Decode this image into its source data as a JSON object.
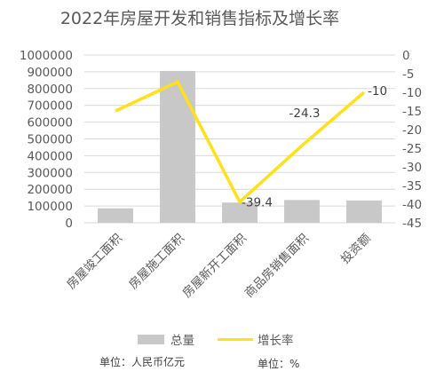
{
  "chart_data": {
    "type": "bar+line",
    "title": "2022年房屋开发和销售指标及增长率",
    "categories": [
      "房屋竣工面积",
      "房屋施工面积",
      "房屋新开工面积",
      "商品房销售面积",
      "投资额"
    ],
    "series": [
      {
        "name": "总量",
        "type": "bar",
        "axis": "left",
        "color": "#c8c8c8",
        "values": [
          86222,
          904999,
          120587,
          135837,
          132895
        ]
      },
      {
        "name": "增长率",
        "type": "line",
        "axis": "right",
        "color": "#ffe119",
        "values": [
          -15,
          -7.2,
          -39.4,
          -24.3,
          -10
        ],
        "data_labels": [
          "",
          "",
          "-39.4",
          "-24.3",
          "-10"
        ]
      }
    ],
    "left_axis": {
      "min": 0,
      "max": 1000000,
      "step": 100000,
      "ticks": [
        "0",
        "100000",
        "200000",
        "300000",
        "400000",
        "500000",
        "600000",
        "700000",
        "800000",
        "900000",
        "1000000"
      ]
    },
    "right_axis": {
      "min": -45,
      "max": 0,
      "step": 5,
      "ticks": [
        "0",
        "-5",
        "-10",
        "-15",
        "-20",
        "-25",
        "-30",
        "-35",
        "-40",
        "-45"
      ]
    },
    "gridlines": true,
    "legend_position": "bottom",
    "unit_left": "单位：人民币亿元",
    "unit_right": "单位：%"
  }
}
